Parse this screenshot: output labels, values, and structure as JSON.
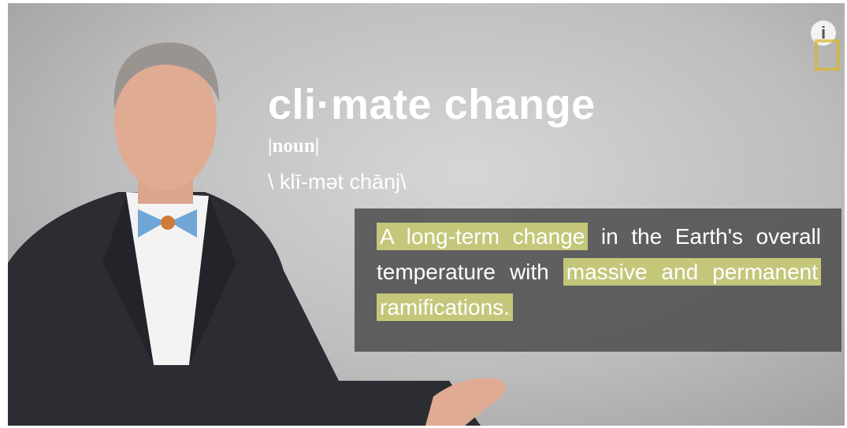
{
  "title": "cli·mate change",
  "part_of_speech": "|noun|",
  "pronunciation": "\\ klī-mət chānj\\",
  "definition": {
    "segments": [
      {
        "text": "A long-term change",
        "highlighted": true
      },
      {
        "text": "in the Earth's overall temperature with",
        "highlighted": false
      },
      {
        "text": "massive and permanent ramifications.",
        "highlighted": true
      }
    ]
  },
  "info_button": "i"
}
